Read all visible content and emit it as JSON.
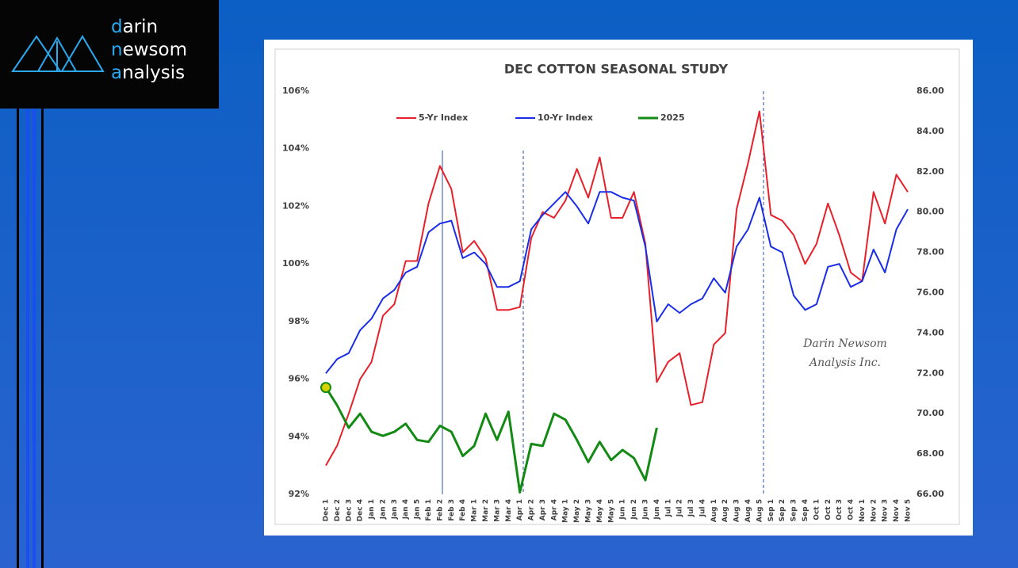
{
  "logo": {
    "lines": [
      "darin",
      "newsom",
      "analysis"
    ]
  },
  "chart_data": {
    "type": "line",
    "title": "DEC COTTON SEASONAL STUDY",
    "annotations": [
      "Darin Newsom",
      "Analysis Inc."
    ],
    "categories": [
      "Dec 1",
      "Dec 2",
      "Dec 3",
      "Dec 4",
      "Jan 1",
      "Jan 2",
      "Jan 3",
      "Jan 4",
      "Jan 5",
      "Feb 1",
      "Feb 2",
      "Feb 3",
      "Feb 4",
      "Mar 1",
      "Mar 2",
      "Mar 3",
      "Mar 4",
      "Apr 1",
      "Apr 2",
      "Apr 3",
      "Apr 4",
      "May 1",
      "May 2",
      "May 3",
      "May 4",
      "May 5",
      "Jun 1",
      "Jun 2",
      "Jun 3",
      "Jun 4",
      "Jul 1",
      "Jul 2",
      "Jul 3",
      "Jul 4",
      "Aug 1",
      "Aug 2",
      "Aug 3",
      "Aug 4",
      "Aug 5",
      "Sep 1",
      "Sep 2",
      "Sep 3",
      "Sep 4",
      "Oct 1",
      "Oct 2",
      "Oct 3",
      "Oct 4",
      "Nov 1",
      "Nov 2",
      "Nov 3",
      "Nov 4",
      "Nov 5"
    ],
    "series": [
      {
        "name": "5-Yr Index",
        "color": "#e8202a",
        "values": [
          93.0,
          93.7,
          94.8,
          96.0,
          96.6,
          98.2,
          98.6,
          100.1,
          100.1,
          102.1,
          103.4,
          102.6,
          100.4,
          100.8,
          100.2,
          98.4,
          98.4,
          98.5,
          100.9,
          101.8,
          101.6,
          102.2,
          103.3,
          102.3,
          103.7,
          101.6,
          101.6,
          102.5,
          100.7,
          95.9,
          96.6,
          96.9,
          95.1,
          95.2,
          97.2,
          97.6,
          101.9,
          103.5,
          105.3,
          101.7,
          101.5,
          101.0,
          100.0,
          100.7,
          102.1,
          101.0,
          99.7,
          99.4,
          102.5,
          101.4,
          103.1,
          102.5
        ]
      },
      {
        "name": "10-Yr Index",
        "color": "#1a2ee8",
        "values": [
          96.2,
          96.7,
          96.9,
          97.7,
          98.1,
          98.8,
          99.1,
          99.7,
          99.9,
          101.1,
          101.4,
          101.5,
          100.2,
          100.4,
          100.0,
          99.2,
          99.2,
          99.4,
          101.2,
          101.7,
          102.1,
          102.5,
          102.0,
          101.4,
          102.5,
          102.5,
          102.3,
          102.2,
          100.6,
          98.0,
          98.6,
          98.3,
          98.6,
          98.8,
          99.5,
          99.0,
          100.6,
          101.2,
          102.3,
          100.6,
          100.4,
          98.9,
          98.4,
          98.6,
          99.9,
          100.0,
          99.2,
          99.4,
          100.5,
          99.7,
          101.2,
          101.9
        ]
      },
      {
        "name": "2025",
        "color": "#138a13",
        "axis": "y2",
        "values": [
          71.3,
          70.4,
          69.3,
          70.0,
          69.1,
          68.9,
          69.1,
          69.5,
          68.7,
          68.6,
          69.4,
          69.1,
          67.9,
          68.4,
          70.0,
          68.7,
          70.1,
          66.1,
          68.5,
          68.4,
          70.0,
          69.7,
          68.7,
          67.6,
          68.6,
          67.7,
          68.2,
          67.8,
          66.7,
          69.3,
          null,
          null,
          null,
          null,
          null,
          null,
          null,
          null,
          null,
          null,
          null,
          null,
          null,
          null,
          null,
          null,
          null,
          null,
          null,
          null,
          null,
          null
        ]
      }
    ],
    "ylim": [
      92,
      106
    ],
    "yticks": [
      {
        "value": 92,
        "label": "92%"
      },
      {
        "value": 94,
        "label": "94%"
      },
      {
        "value": 96,
        "label": "96%"
      },
      {
        "value": 98,
        "label": "98%"
      },
      {
        "value": 100,
        "label": "100%"
      },
      {
        "value": 102,
        "label": "102%"
      },
      {
        "value": 104,
        "label": "104%"
      },
      {
        "value": 106,
        "label": "106%"
      }
    ],
    "y2lim": [
      66,
      86
    ],
    "y2ticks": [
      {
        "value": 66,
        "label": "66.00"
      },
      {
        "value": 68,
        "label": "68.00"
      },
      {
        "value": 70,
        "label": "70.00"
      },
      {
        "value": 72,
        "label": "72.00"
      },
      {
        "value": 74,
        "label": "74.00"
      },
      {
        "value": 76,
        "label": "76.00"
      },
      {
        "value": 78,
        "label": "78.00"
      },
      {
        "value": 80,
        "label": "80.00"
      },
      {
        "value": 82,
        "label": "82.00"
      },
      {
        "value": 84,
        "label": "84.00"
      },
      {
        "value": 86,
        "label": "86.00"
      }
    ],
    "grid": false,
    "legend": "top"
  }
}
